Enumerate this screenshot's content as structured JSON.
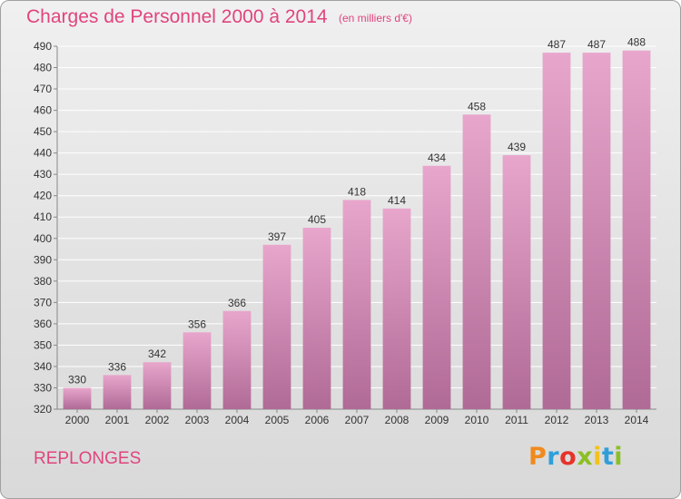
{
  "header": {
    "title": "Charges de Personnel 2000 à 2014",
    "subtitle": "(en milliers d'€)"
  },
  "footer": {
    "commune": "REPLONGES",
    "logo": "Proxiti",
    "logo_colors": [
      "#f08a1e",
      "#2f9fd9",
      "#e6332a",
      "#8cbf26",
      "#f2c21b",
      "#2f9fd9",
      "#8cbf26"
    ]
  },
  "colors": {
    "accent": "#e0447c",
    "bar_top": "#e8a6cc",
    "bar_bottom": "#b06a96",
    "grid": "#ffffff"
  },
  "chart_data": {
    "type": "bar",
    "title": "Charges de Personnel 2000 à 2014",
    "subtitle": "(en milliers d'€)",
    "xlabel": "",
    "ylabel": "",
    "categories": [
      "2000",
      "2001",
      "2002",
      "2003",
      "2004",
      "2005",
      "2006",
      "2007",
      "2008",
      "2009",
      "2010",
      "2011",
      "2012",
      "2013",
      "2014"
    ],
    "values": [
      330,
      336,
      342,
      356,
      366,
      397,
      405,
      418,
      414,
      434,
      458,
      439,
      487,
      487,
      488
    ],
    "ylim": [
      320,
      490
    ],
    "yticks": [
      320,
      330,
      340,
      350,
      360,
      370,
      380,
      390,
      400,
      410,
      420,
      430,
      440,
      450,
      460,
      470,
      480,
      490
    ],
    "grid": true,
    "legend": "none"
  }
}
